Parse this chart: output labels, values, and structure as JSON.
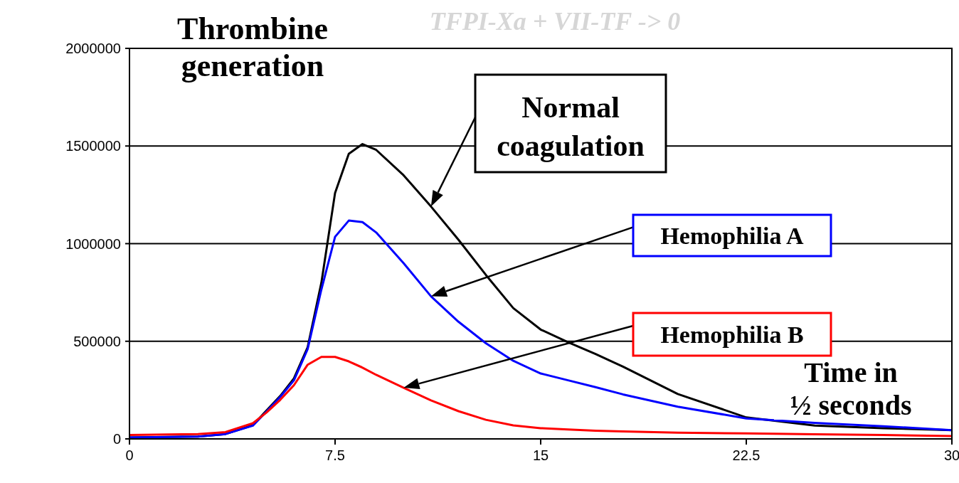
{
  "chart_data": {
    "type": "line",
    "ylabel": "Thrombine generation",
    "xlabel": "Time in ½ seconds",
    "annotations": [
      "TFPI-Xa + VII-TF -> 0"
    ],
    "x": [
      0,
      2.5,
      3.5,
      4.5,
      5,
      5.5,
      6,
      6.5,
      7,
      7.5,
      8,
      8.5,
      9,
      10,
      11,
      12,
      13,
      14,
      15,
      16,
      17,
      18,
      20,
      22.5,
      25,
      27.5,
      30
    ],
    "series": [
      {
        "name": "Normal coagulation",
        "color": "#000000",
        "values": [
          7000,
          12000,
          25000,
          70000,
          146000,
          220000,
          310000,
          470000,
          800000,
          1260000,
          1460000,
          1510000,
          1480000,
          1350000,
          1190000,
          1020000,
          840000,
          670000,
          560000,
          495000,
          435000,
          370000,
          230000,
          110000,
          68000,
          55000,
          45000
        ]
      },
      {
        "name": "Hemophilia A",
        "color": "#0000ff",
        "values": [
          7000,
          12000,
          25000,
          68000,
          140000,
          215000,
          300000,
          460000,
          765000,
          1035000,
          1118000,
          1110000,
          1057000,
          900000,
          730000,
          600000,
          490000,
          400000,
          335000,
          300000,
          265000,
          228000,
          165000,
          105000,
          82000,
          65000,
          45000
        ]
      },
      {
        "name": "Hemophilia B",
        "color": "#ff0000",
        "values": [
          20000,
          25000,
          35000,
          80000,
          135000,
          200000,
          275000,
          380000,
          420000,
          420000,
          397000,
          365000,
          328000,
          262000,
          197000,
          142000,
          98000,
          69000,
          55000,
          48000,
          42000,
          38000,
          32000,
          28000,
          24000,
          20000,
          15000
        ]
      }
    ],
    "xlim": [
      0,
      30
    ],
    "xticks": [
      0,
      7.5,
      15,
      22.5,
      30
    ],
    "ylim": [
      0,
      2000000
    ],
    "yticks": [
      0,
      500000,
      1000000,
      1500000,
      2000000
    ],
    "grid": "y"
  }
}
